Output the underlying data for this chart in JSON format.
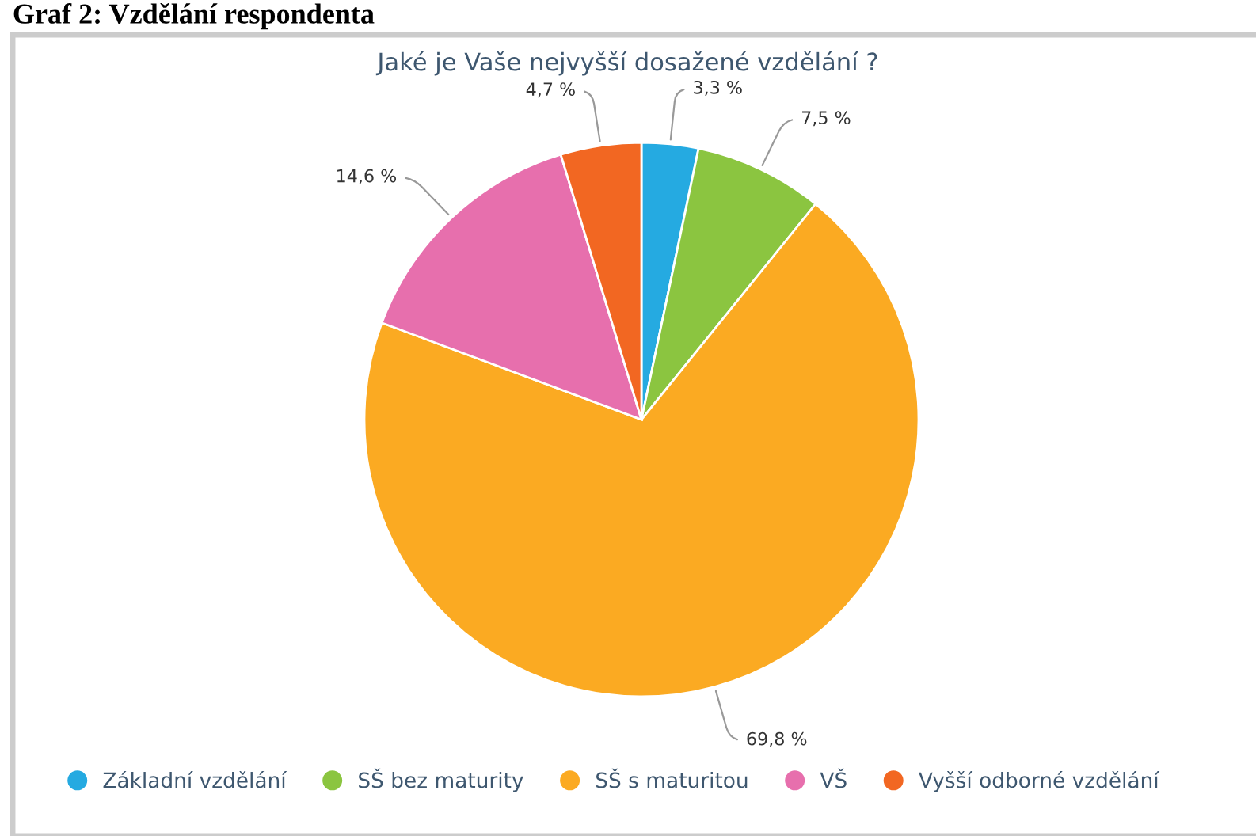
{
  "chart_data": {
    "type": "pie",
    "title": "Jaké je Vaše nejvyšší dosažené vzdělání ?",
    "annotations": [
      "Graf 2: Vzdělání respondenta"
    ],
    "categories": [
      "Základní vzdělání",
      "SŠ bez maturity",
      "SŠ s maturitou",
      "VŠ",
      "Vyšší odborné vzdělání"
    ],
    "values": [
      3.3,
      7.5,
      69.8,
      14.6,
      4.7
    ],
    "value_labels": [
      "3,3 %",
      "7,5 %",
      "69,8 %",
      "14,6 %",
      "4,7 %"
    ],
    "colors": [
      "#25aae1",
      "#8bc540",
      "#fbaa22",
      "#e76fad",
      "#f26722"
    ],
    "legend": "bottom"
  }
}
